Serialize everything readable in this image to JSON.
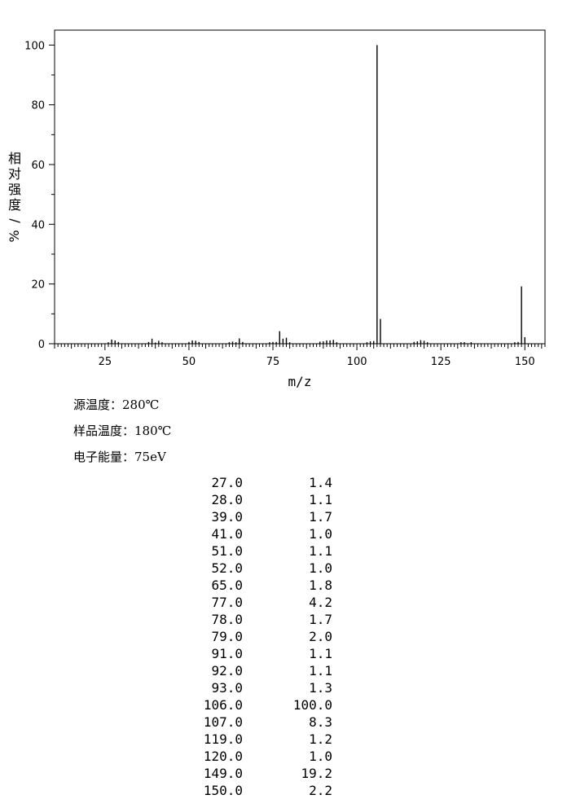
{
  "chart_data": {
    "type": "bar",
    "xlabel": "m/z",
    "ylabel": "相对强度/%",
    "xlim": [
      10,
      156
    ],
    "ylim": [
      0,
      105
    ],
    "x_ticks": [
      25,
      50,
      75,
      100,
      125,
      150
    ],
    "y_ticks": [
      0,
      20,
      40,
      60,
      80,
      100
    ],
    "grid": false,
    "x": [
      26,
      27,
      28,
      29,
      38,
      39,
      40,
      41,
      42,
      50,
      51,
      52,
      53,
      62,
      63,
      64,
      65,
      66,
      74,
      75,
      76,
      77,
      78,
      79,
      80,
      89,
      90,
      91,
      92,
      93,
      94,
      103,
      104,
      105,
      106,
      107,
      117,
      118,
      119,
      120,
      121,
      131,
      132,
      134,
      147,
      148,
      149,
      150
    ],
    "values": [
      0.5,
      1.4,
      1.1,
      0.6,
      0.6,
      1.7,
      0.4,
      1.0,
      0.5,
      0.6,
      1.1,
      1.0,
      0.6,
      0.5,
      0.7,
      0.5,
      1.8,
      0.6,
      0.5,
      0.6,
      0.6,
      4.2,
      1.7,
      2.0,
      0.5,
      0.7,
      0.8,
      1.1,
      1.1,
      1.3,
      0.5,
      0.5,
      0.8,
      0.9,
      100.0,
      8.3,
      0.6,
      0.8,
      1.2,
      1.0,
      0.5,
      0.5,
      0.5,
      0.5,
      0.5,
      0.6,
      19.2,
      2.2
    ]
  },
  "conditions": [
    "源温度：280℃",
    "样品温度：180℃",
    "电子能量：75eV"
  ],
  "peak_table": [
    {
      "mz": "27.0",
      "intensity": "1.4"
    },
    {
      "mz": "28.0",
      "intensity": "1.1"
    },
    {
      "mz": "39.0",
      "intensity": "1.7"
    },
    {
      "mz": "41.0",
      "intensity": "1.0"
    },
    {
      "mz": "51.0",
      "intensity": "1.1"
    },
    {
      "mz": "52.0",
      "intensity": "1.0"
    },
    {
      "mz": "65.0",
      "intensity": "1.8"
    },
    {
      "mz": "77.0",
      "intensity": "4.2"
    },
    {
      "mz": "78.0",
      "intensity": "1.7"
    },
    {
      "mz": "79.0",
      "intensity": "2.0"
    },
    {
      "mz": "91.0",
      "intensity": "1.1"
    },
    {
      "mz": "92.0",
      "intensity": "1.1"
    },
    {
      "mz": "93.0",
      "intensity": "1.3"
    },
    {
      "mz": "106.0",
      "intensity": "100.0"
    },
    {
      "mz": "107.0",
      "intensity": "8.3"
    },
    {
      "mz": "119.0",
      "intensity": "1.2"
    },
    {
      "mz": "120.0",
      "intensity": "1.0"
    },
    {
      "mz": "149.0",
      "intensity": "19.2"
    },
    {
      "mz": "150.0",
      "intensity": "2.2"
    }
  ]
}
